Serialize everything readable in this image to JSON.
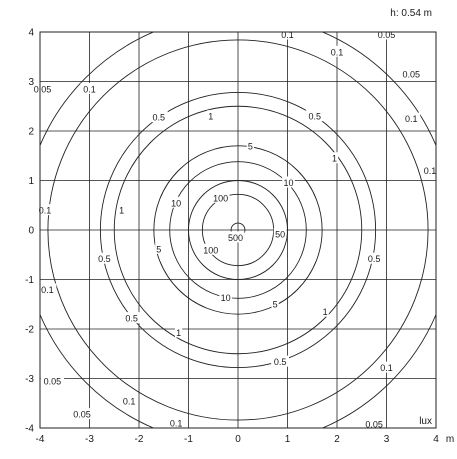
{
  "chart_data": {
    "type": "contour",
    "annotation": "h: 0.54 m",
    "x_unit": "m",
    "value_unit": "lux",
    "xlim": [
      -4,
      4
    ],
    "ylim": [
      -4,
      4
    ],
    "x_ticks": [
      "-4",
      "-3",
      "-2",
      "-1",
      "0",
      "1",
      "2",
      "3",
      "4"
    ],
    "y_ticks": [
      "4",
      "3",
      "2",
      "1",
      "0",
      "-1",
      "-2",
      "-3",
      "-4"
    ],
    "grid": true,
    "levels": [
      {
        "value": "500",
        "radius": 0.14,
        "labels": [
          {
            "text": "500",
            "x": -0.05,
            "y": -0.15
          }
        ]
      },
      {
        "value": "100",
        "radius": 0.72,
        "labels": [
          {
            "text": "100",
            "x": -0.35,
            "y": 0.65
          },
          {
            "text": "100",
            "x": -0.55,
            "y": -0.4
          }
        ]
      },
      {
        "value": "50",
        "radius": 1.0,
        "labels": [
          {
            "text": "50",
            "x": 0.85,
            "y": -0.08
          }
        ]
      },
      {
        "value": "10",
        "radius": 1.38,
        "labels": [
          {
            "text": "10",
            "x": -1.25,
            "y": 0.55
          },
          {
            "text": "10",
            "x": 1.02,
            "y": 0.96
          },
          {
            "text": "10",
            "x": -0.25,
            "y": -1.36
          }
        ]
      },
      {
        "value": "5",
        "radius": 1.7,
        "labels": [
          {
            "text": "5",
            "x": 0.25,
            "y": 1.7
          },
          {
            "text": "5",
            "x": -1.6,
            "y": -0.38
          },
          {
            "text": "5",
            "x": 0.75,
            "y": -1.49
          }
        ]
      },
      {
        "value": "1",
        "radius": 2.5,
        "labels": [
          {
            "text": "1",
            "x": -0.55,
            "y": 2.3
          },
          {
            "text": "1",
            "x": 1.95,
            "y": 1.45
          },
          {
            "text": "1",
            "x": -2.35,
            "y": 0.4
          },
          {
            "text": "1",
            "x": 1.76,
            "y": -1.65
          },
          {
            "text": "1",
            "x": -1.2,
            "y": -2.07
          }
        ]
      },
      {
        "value": "0.5",
        "radius": 2.78,
        "labels": [
          {
            "text": "0.5",
            "x": -1.6,
            "y": 2.28
          },
          {
            "text": "0.5",
            "x": 1.55,
            "y": 2.3
          },
          {
            "text": "0.5",
            "x": -2.7,
            "y": -0.58
          },
          {
            "text": "0.5",
            "x": 2.75,
            "y": -0.58
          },
          {
            "text": "0.5",
            "x": -2.15,
            "y": -1.78
          },
          {
            "text": "0.5",
            "x": 0.85,
            "y": -2.66
          }
        ]
      },
      {
        "value": "0.1",
        "radius": 3.84,
        "labels": [
          {
            "text": "0.1",
            "x": -3.0,
            "y": 2.85
          },
          {
            "text": "0.1",
            "x": 2.0,
            "y": 3.6
          },
          {
            "text": "0.1",
            "x": 3.5,
            "y": 2.25
          },
          {
            "text": "0.1",
            "x": 3.88,
            "y": 1.2
          },
          {
            "text": "0.1",
            "x": -3.9,
            "y": 0.4
          },
          {
            "text": "0.1",
            "x": -3.85,
            "y": -1.2
          },
          {
            "text": "0.1",
            "x": 3.0,
            "y": -2.78
          },
          {
            "text": "0.1",
            "x": -2.2,
            "y": -3.45
          },
          {
            "text": "0.1",
            "x": -1.25,
            "y": -3.9
          },
          {
            "text": "0.1",
            "x": 1.0,
            "y": 3.95
          }
        ]
      },
      {
        "value": "0.05",
        "radius": 4.35,
        "labels": [
          {
            "text": "0.05",
            "x": 3.5,
            "y": 3.15
          },
          {
            "text": "0.05",
            "x": 3.0,
            "y": 3.95
          },
          {
            "text": "0.05",
            "x": -3.95,
            "y": 2.85
          },
          {
            "text": "0.05",
            "x": -3.75,
            "y": -3.05
          },
          {
            "text": "0.05",
            "x": -3.15,
            "y": -3.72
          },
          {
            "text": "0.05",
            "x": 2.75,
            "y": -3.92
          }
        ]
      }
    ]
  }
}
